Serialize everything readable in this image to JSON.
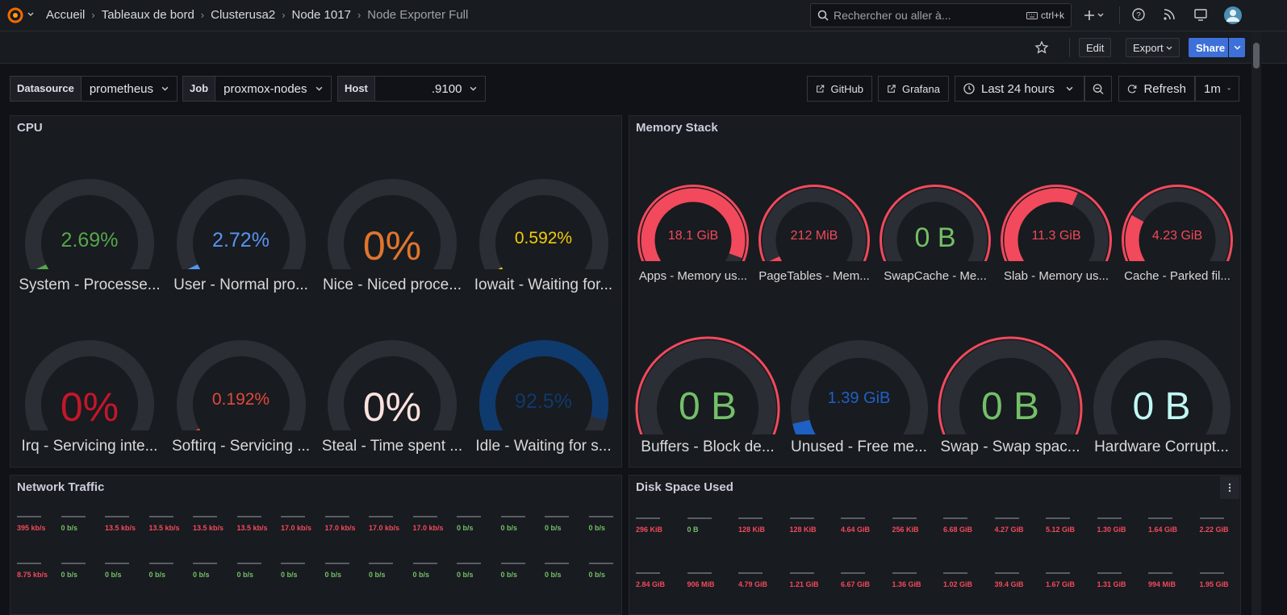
{
  "breadcrumbs": [
    "Accueil",
    "Tableaux de bord",
    "Clusterusa2",
    "Node 1017",
    "Node Exporter Full"
  ],
  "search": {
    "placeholder": "Rechercher ou aller à...",
    "shortcut": "ctrl+k"
  },
  "toolbar": {
    "edit": "Edit",
    "export": "Export",
    "share": "Share"
  },
  "variables": [
    {
      "label": "Datasource",
      "value": "prometheus"
    },
    {
      "label": "Job",
      "value": "proxmox-nodes"
    },
    {
      "label": "Host",
      "value": ".9100"
    }
  ],
  "links": {
    "github": "GitHub",
    "grafana": "Grafana"
  },
  "time_range": "Last 24 hours",
  "refresh": {
    "label": "Refresh",
    "interval": "1m"
  },
  "colors": {
    "green": "#56a64b",
    "blue": "#5794f2",
    "orange": "#e0752d",
    "yellow": "#f2cc0c",
    "red": "#f2495c",
    "darkred": "#c4162a",
    "darkblue": "#1f60c4",
    "track": "#2b2e34"
  },
  "cpu_panel": {
    "title": "CPU",
    "gauges": [
      {
        "value": "2.69%",
        "label": "System - Processe...",
        "pct": 2.69,
        "color": "#56a64b"
      },
      {
        "value": "2.72%",
        "label": "User - Normal pro...",
        "pct": 2.72,
        "color": "#5794f2"
      },
      {
        "value": "0%",
        "label": "Nice - Niced proce...",
        "pct": 0,
        "color": "#e0752d"
      },
      {
        "value": "0.592%",
        "label": "Iowait - Waiting for...",
        "pct": 0.592,
        "color": "#f2cc0c"
      },
      {
        "value": "0%",
        "label": "Irq - Servicing inte...",
        "pct": 0,
        "color": "#c4162a"
      },
      {
        "value": "0.192%",
        "label": "Softirq - Servicing ...",
        "pct": 0.192,
        "color": "#e0493c"
      },
      {
        "value": "0%",
        "label": "Steal - Time spent ...",
        "pct": 0,
        "color": "#fce2de"
      },
      {
        "value": "92.5%",
        "label": "Idle - Waiting for s...",
        "pct": 92.5,
        "color": "#0f3a6e"
      }
    ]
  },
  "memory_panel": {
    "title": "Memory Stack",
    "gauges": [
      {
        "value": "18.1 GiB",
        "label": "Apps - Memory us...",
        "pct": 95,
        "color": "#f2495c"
      },
      {
        "value": "212 MiB",
        "label": "PageTables - Mem...",
        "pct": 3,
        "color": "#f2495c"
      },
      {
        "value": "0 B",
        "label": "SwapCache - Me...",
        "pct": 0,
        "color": "#73bf69"
      },
      {
        "value": "11.3 GiB",
        "label": "Slab - Memory us...",
        "pct": 60,
        "color": "#f2495c"
      },
      {
        "value": "4.23 GiB",
        "label": "Cache - Parked fil...",
        "pct": 25,
        "color": "#f2495c"
      },
      {
        "value": "0 B",
        "label": "Buffers - Block de...",
        "pct": 0,
        "color": "#73bf69"
      },
      {
        "value": "1.39 GiB",
        "label": "Unused - Free me...",
        "pct": 8,
        "color": "#1f60c4"
      },
      {
        "value": "0 B",
        "label": "Swap - Swap spac...",
        "pct": 0,
        "color": "#73bf69"
      },
      {
        "value": "0 B",
        "label": "Hardware Corrupt...",
        "pct": 0,
        "color": "#c0f7f5"
      }
    ]
  },
  "network_panel": {
    "title": "Network Traffic",
    "row1": [
      "395 kb/s",
      "0 b/s",
      "13.5 kb/s",
      "13.5 kb/s",
      "13.5 kb/s",
      "13.5 kb/s",
      "17.0 kb/s",
      "17.0 kb/s",
      "17.0 kb/s",
      "17.0 kb/s",
      "0 b/s",
      "0 b/s",
      "0 b/s",
      "0 b/s"
    ],
    "row2": [
      "8.75 kb/s",
      "0 b/s",
      "0 b/s",
      "0 b/s",
      "0 b/s",
      "0 b/s",
      "0 b/s",
      "0 b/s",
      "0 b/s",
      "0 b/s",
      "0 b/s",
      "0 b/s",
      "0 b/s",
      "0 b/s"
    ]
  },
  "disk_panel": {
    "title": "Disk Space Used",
    "row1": [
      "296 KiB",
      "0 B",
      "128 KiB",
      "128 KiB",
      "4.64 GiB",
      "256 KiB",
      "6.68 GiB",
      "4.27 GiB",
      "5.12 GiB",
      "1.30 GiB",
      "1.64 GiB",
      "2.22 GiB"
    ],
    "row2": [
      "2.84 GiB",
      "906 MiB",
      "4.79 GiB",
      "1.21 GiB",
      "6.67 GiB",
      "1.36 GiB",
      "1.02 GiB",
      "39.4 GiB",
      "1.67 GiB",
      "1.31 GiB",
      "994 MiB",
      "1.95 GiB"
    ]
  }
}
